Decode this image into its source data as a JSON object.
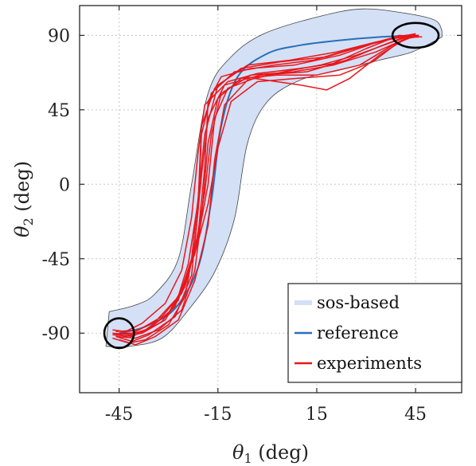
{
  "chart_data": {
    "type": "line",
    "title": "",
    "xlabel": {
      "symbol": "θ",
      "sub": "1",
      "unit": " (deg)"
    },
    "ylabel": {
      "symbol": "θ",
      "sub": "2",
      "unit": " (deg)"
    },
    "xlim": [
      -57,
      59
    ],
    "ylim": [
      -126,
      108
    ],
    "xticks": [
      -45,
      -15,
      15,
      45
    ],
    "yticks": [
      90,
      45,
      0,
      -45,
      -90
    ],
    "xtick_labels": [
      "-45",
      "-15",
      "15",
      "45"
    ],
    "ytick_labels": [
      "90",
      "45",
      "0",
      "-45",
      "-90"
    ],
    "grid": true,
    "legend_position": "bottom-right",
    "colors": {
      "band": "#d3e0f6",
      "reference": "#2a6fb8",
      "experiments": "#e8161b",
      "ellipse": "#000000"
    },
    "band": {
      "name": "sos-based",
      "upper": [
        [
          -48,
          -77
        ],
        [
          -40,
          -73
        ],
        [
          -34,
          -66
        ],
        [
          -27,
          -45
        ],
        [
          -23,
          0
        ],
        [
          -18,
          55
        ],
        [
          -11,
          77
        ],
        [
          -1,
          91
        ],
        [
          15,
          101
        ],
        [
          29,
          106
        ],
        [
          43,
          103
        ],
        [
          51,
          99
        ],
        [
          53,
          93
        ]
      ],
      "lower": [
        [
          -49,
          -98
        ],
        [
          -42,
          -98
        ],
        [
          -32,
          -93
        ],
        [
          -24,
          -76
        ],
        [
          -16,
          -53
        ],
        [
          -10,
          -21
        ],
        [
          -6,
          25
        ],
        [
          0,
          50
        ],
        [
          10,
          63
        ],
        [
          22,
          69
        ],
        [
          34,
          75
        ],
        [
          44,
          80
        ],
        [
          53,
          89
        ]
      ]
    },
    "reference": {
      "name": "reference",
      "points": [
        [
          -45,
          -90
        ],
        [
          -37,
          -86
        ],
        [
          -28,
          -75
        ],
        [
          -21,
          -50
        ],
        [
          -17,
          -10
        ],
        [
          -14,
          35
        ],
        [
          -9,
          65
        ],
        [
          0,
          79
        ],
        [
          10,
          84
        ],
        [
          22,
          87
        ],
        [
          34,
          89
        ],
        [
          45,
          90
        ]
      ]
    },
    "experiments": {
      "name": "experiments",
      "series": [
        [
          [
            -47,
            -90
          ],
          [
            -42,
            -91
          ],
          [
            -37,
            -88
          ],
          [
            -30,
            -78
          ],
          [
            -25,
            -60
          ],
          [
            -21,
            -30
          ],
          [
            -19,
            10
          ],
          [
            -18,
            50
          ],
          [
            -14,
            65
          ],
          [
            -5,
            70
          ],
          [
            8,
            72
          ],
          [
            22,
            78
          ],
          [
            32,
            85
          ],
          [
            42,
            90
          ],
          [
            47,
            89
          ]
        ],
        [
          [
            -46,
            -92
          ],
          [
            -41,
            -95
          ],
          [
            -36,
            -91
          ],
          [
            -28,
            -80
          ],
          [
            -23,
            -55
          ],
          [
            -21,
            -15
          ],
          [
            -20,
            30
          ],
          [
            -17,
            55
          ],
          [
            -10,
            68
          ],
          [
            2,
            72
          ],
          [
            14,
            75
          ],
          [
            26,
            82
          ],
          [
            37,
            88
          ],
          [
            45,
            91
          ]
        ],
        [
          [
            -47,
            -88
          ],
          [
            -43,
            -89
          ],
          [
            -38,
            -84
          ],
          [
            -31,
            -72
          ],
          [
            -26,
            -52
          ],
          [
            -23,
            -20
          ],
          [
            -21,
            20
          ],
          [
            -19,
            48
          ],
          [
            -12,
            62
          ],
          [
            -3,
            67
          ],
          [
            10,
            70
          ],
          [
            20,
            73
          ],
          [
            30,
            82
          ],
          [
            40,
            90
          ],
          [
            46,
            89
          ]
        ],
        [
          [
            -45,
            -94
          ],
          [
            -40,
            -97
          ],
          [
            -34,
            -92
          ],
          [
            -27,
            -82
          ],
          [
            -22,
            -58
          ],
          [
            -18,
            -25
          ],
          [
            -16,
            15
          ],
          [
            -13,
            48
          ],
          [
            -6,
            63
          ],
          [
            5,
            68
          ],
          [
            16,
            72
          ],
          [
            27,
            78
          ],
          [
            38,
            86
          ],
          [
            44,
            90
          ]
        ],
        [
          [
            -47,
            -91
          ],
          [
            -41,
            -92
          ],
          [
            -35,
            -86
          ],
          [
            -28,
            -74
          ],
          [
            -24,
            -48
          ],
          [
            -21,
            -10
          ],
          [
            -20,
            35
          ],
          [
            -16,
            58
          ],
          [
            -8,
            70
          ],
          [
            4,
            74
          ],
          [
            18,
            77
          ],
          [
            30,
            84
          ],
          [
            40,
            89
          ],
          [
            46,
            90
          ]
        ],
        [
          [
            -46,
            -89
          ],
          [
            -39,
            -88
          ],
          [
            -32,
            -80
          ],
          [
            -26,
            -66
          ],
          [
            -22,
            -40
          ],
          [
            -19,
            -5
          ],
          [
            -17,
            30
          ],
          [
            -14,
            55
          ],
          [
            -5,
            66
          ],
          [
            8,
            68
          ],
          [
            20,
            72
          ],
          [
            33,
            80
          ],
          [
            42,
            88
          ],
          [
            45,
            89
          ]
        ],
        [
          [
            -47,
            -93
          ],
          [
            -42,
            -96
          ],
          [
            -37,
            -94
          ],
          [
            -30,
            -85
          ],
          [
            -25,
            -68
          ],
          [
            -22,
            -35
          ],
          [
            -20,
            5
          ],
          [
            -18,
            40
          ],
          [
            -13,
            60
          ],
          [
            -2,
            66
          ],
          [
            12,
            68
          ],
          [
            24,
            75
          ],
          [
            35,
            84
          ],
          [
            43,
            90
          ],
          [
            46,
            90
          ]
        ],
        [
          [
            -45,
            -90
          ],
          [
            -38,
            -90
          ],
          [
            -31,
            -82
          ],
          [
            -25,
            -62
          ],
          [
            -21,
            -32
          ],
          [
            -18,
            0
          ],
          [
            -16,
            40
          ],
          [
            -12,
            58
          ],
          [
            -4,
            64
          ],
          [
            10,
            60
          ],
          [
            18,
            57
          ],
          [
            25,
            64
          ],
          [
            34,
            78
          ],
          [
            42,
            88
          ],
          [
            45,
            91
          ]
        ],
        [
          [
            -46,
            -92
          ],
          [
            -40,
            -93
          ],
          [
            -33,
            -88
          ],
          [
            -26,
            -76
          ],
          [
            -22,
            -52
          ],
          [
            -20,
            -20
          ],
          [
            -18,
            25
          ],
          [
            -15,
            52
          ],
          [
            -8,
            64
          ],
          [
            3,
            66
          ],
          [
            15,
            66
          ],
          [
            28,
            72
          ],
          [
            38,
            84
          ],
          [
            45,
            90
          ]
        ],
        [
          [
            -47,
            -90
          ],
          [
            -43,
            -92
          ],
          [
            -38,
            -90
          ],
          [
            -32,
            -83
          ],
          [
            -27,
            -70
          ],
          [
            -23,
            -45
          ],
          [
            -21,
            -8
          ],
          [
            -19,
            30
          ],
          [
            -15,
            60
          ],
          [
            -6,
            72
          ],
          [
            7,
            75
          ],
          [
            21,
            80
          ],
          [
            33,
            86
          ],
          [
            41,
            89
          ],
          [
            46,
            89
          ]
        ],
        [
          [
            -46,
            -91
          ],
          [
            -41,
            -90
          ],
          [
            -34,
            -83
          ],
          [
            -27,
            -68
          ],
          [
            -22,
            -42
          ],
          [
            -18,
            -12
          ],
          [
            -15,
            22
          ],
          [
            -11,
            50
          ],
          [
            -3,
            62
          ],
          [
            9,
            64
          ],
          [
            22,
            66
          ],
          [
            32,
            74
          ],
          [
            40,
            86
          ],
          [
            45,
            90
          ]
        ]
      ]
    },
    "ellipses": [
      {
        "cx": -45,
        "cy": -90,
        "rx": 4.5,
        "ry": 9
      },
      {
        "cx": 45,
        "cy": 90,
        "rx": 7,
        "ry": 7.5
      }
    ],
    "legend": [
      "sos-based",
      "reference",
      "experiments"
    ]
  }
}
